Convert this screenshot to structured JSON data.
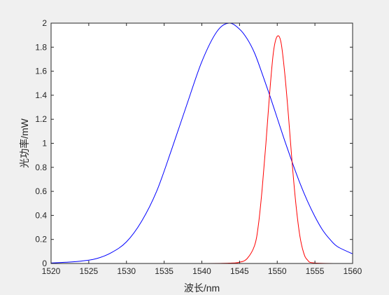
{
  "chart_data": {
    "type": "line",
    "title": "",
    "xlabel": "波长/nm",
    "ylabel": "光功率/mW",
    "xlim": [
      1520,
      1560
    ],
    "ylim": [
      0,
      2
    ],
    "xticks": [
      1520,
      1525,
      1530,
      1535,
      1540,
      1545,
      1550,
      1555,
      1560
    ],
    "yticks": [
      0,
      0.2,
      0.4,
      0.6,
      0.8,
      1,
      1.2,
      1.4,
      1.6,
      1.8,
      2
    ],
    "grid": false,
    "legend": "none",
    "series": [
      {
        "color": "#0000ff",
        "x": [
          1520,
          1522,
          1524,
          1526,
          1528,
          1530,
          1532,
          1534,
          1536,
          1538,
          1540,
          1542,
          1543.6,
          1545,
          1546,
          1547,
          1548,
          1549,
          1550,
          1551,
          1552,
          1553,
          1554,
          1555,
          1556,
          1557,
          1558,
          1560
        ],
        "y": [
          0.004,
          0.01,
          0.02,
          0.04,
          0.09,
          0.18,
          0.35,
          0.6,
          0.95,
          1.32,
          1.68,
          1.93,
          2.0,
          1.95,
          1.87,
          1.75,
          1.58,
          1.4,
          1.21,
          1.02,
          0.84,
          0.67,
          0.52,
          0.39,
          0.28,
          0.2,
          0.14,
          0.08
        ]
      },
      {
        "color": "#ff0000",
        "x": [
          1520,
          1540,
          1544,
          1545,
          1546,
          1547,
          1547.5,
          1548,
          1548.5,
          1549,
          1549.5,
          1550,
          1550.5,
          1551,
          1551.5,
          1552,
          1552.5,
          1553,
          1553.5,
          1554,
          1555,
          1560
        ],
        "y": [
          0,
          0,
          0.004,
          0.01,
          0.04,
          0.15,
          0.32,
          0.62,
          1.0,
          1.42,
          1.76,
          1.89,
          1.84,
          1.58,
          1.22,
          0.82,
          0.48,
          0.23,
          0.09,
          0.03,
          0.004,
          0
        ]
      }
    ]
  }
}
